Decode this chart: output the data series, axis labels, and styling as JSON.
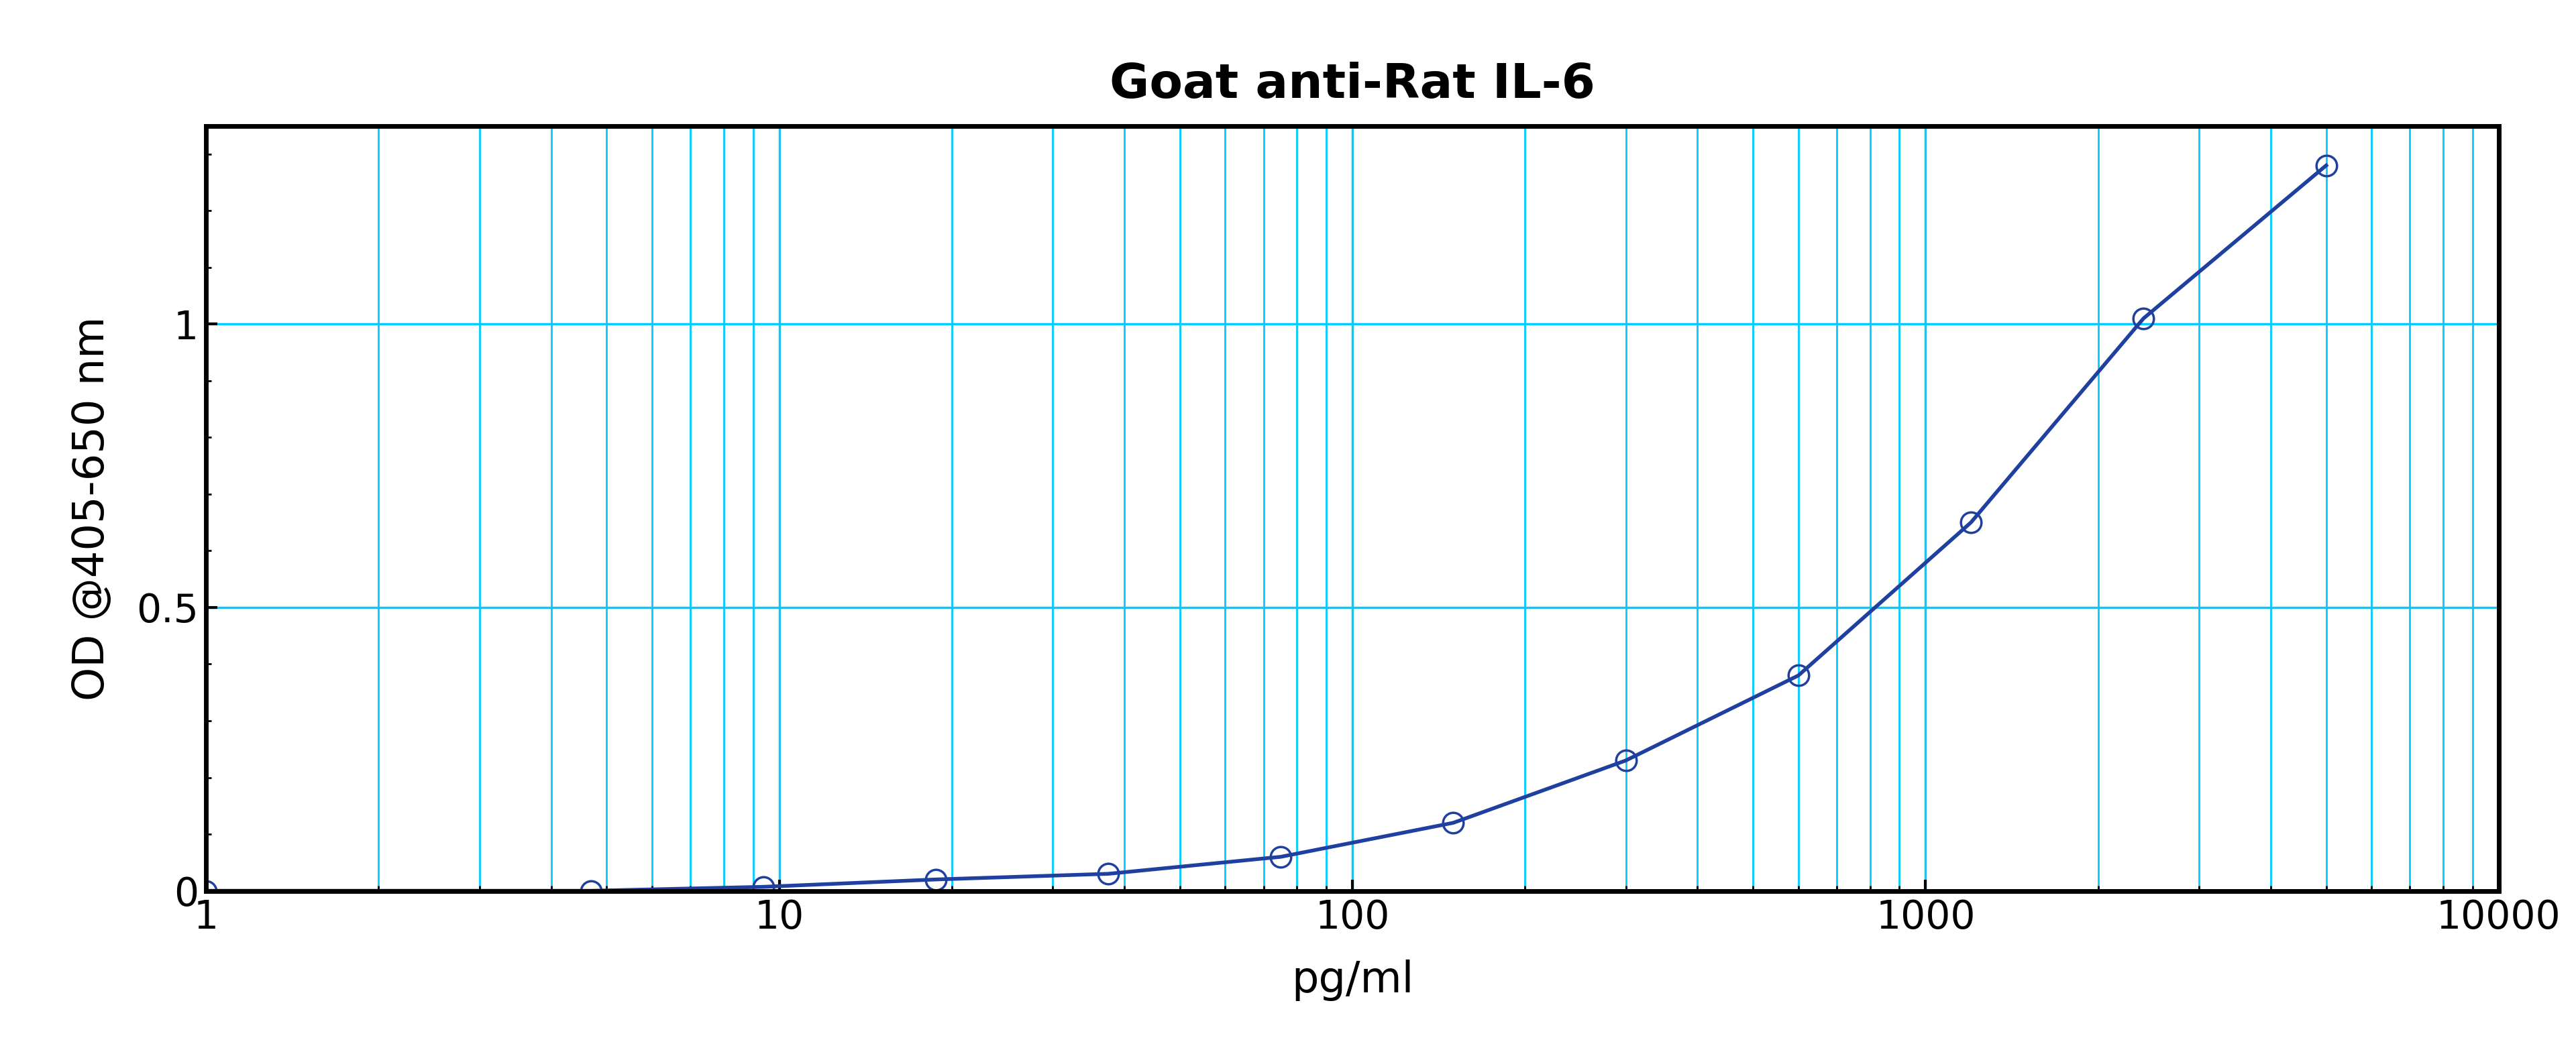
{
  "title": "Goat anti-Rat IL-6",
  "xlabel": "pg/ml",
  "ylabel": "OD @405-650 nm",
  "curve_color": "#2040a0",
  "marker_color": "#2040a0",
  "grid_color": "#00ccff",
  "background_color": "#ffffff",
  "data_x": [
    1.0,
    4.69,
    9.38,
    18.75,
    37.5,
    75.0,
    150.0,
    300.0,
    600.0,
    1200.0,
    2400.0,
    5000.0
  ],
  "data_y": [
    0.0,
    0.0,
    0.007,
    0.02,
    0.03,
    0.06,
    0.12,
    0.23,
    0.38,
    0.65,
    1.01,
    1.28
  ],
  "xlim": [
    1,
    10000
  ],
  "ylim": [
    0.0,
    1.35
  ],
  "yticks": [
    0,
    0.5,
    1.0
  ],
  "xticks": [
    1,
    10,
    100,
    1000,
    10000
  ],
  "title_fontsize": 52,
  "label_fontsize": 46,
  "tick_fontsize": 42,
  "line_width": 4.0,
  "marker_size": 22,
  "marker_linewidth": 2.5,
  "spine_linewidth": 5.0,
  "grid_major_lw": 2.5,
  "grid_minor_lw": 2.0
}
